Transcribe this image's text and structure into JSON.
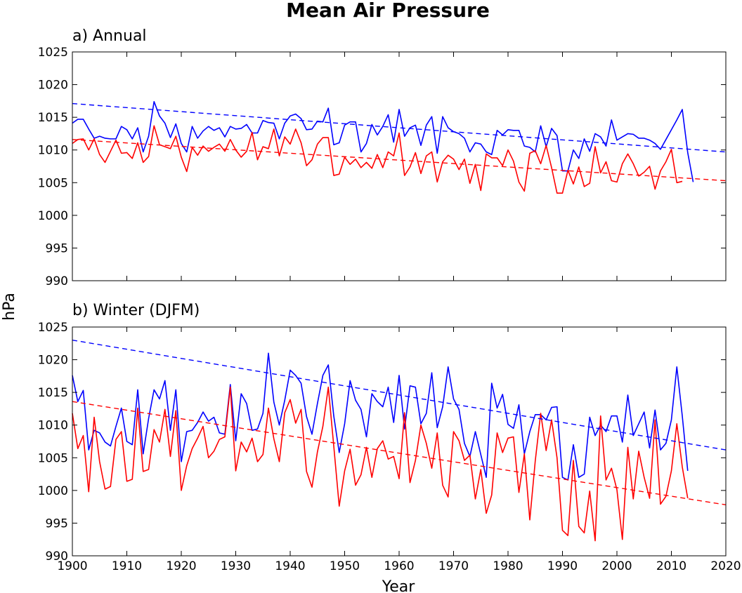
{
  "title": "Mean Air Pressure",
  "shared_ylabel": "hPa",
  "colors": {
    "line_a": "#0000ff",
    "line_b": "#ff0000"
  },
  "chart_data": [
    {
      "type": "line",
      "title": "a) Annual",
      "xlabel": "",
      "ylabel": "hPa",
      "xlim": [
        1900,
        2020
      ],
      "ylim": [
        990,
        1025
      ],
      "yticks": [
        990,
        995,
        1000,
        1005,
        1010,
        1015,
        1020,
        1025
      ],
      "grid": false,
      "series": [
        {
          "color": "#0000ff",
          "x_start": 1900,
          "values": [
            1014.1,
            1014.7,
            1014.7,
            1013.2,
            1011.8,
            1012.1,
            1011.8,
            1011.7,
            1011.7,
            1013.6,
            1013.1,
            1011.7,
            1013.4,
            1009.7,
            1012.1,
            1017.4,
            1015.2,
            1014.1,
            1011.9,
            1014.0,
            1011.0,
            1009.7,
            1013.6,
            1011.8,
            1012.9,
            1013.6,
            1013.0,
            1013.4,
            1012.0,
            1013.6,
            1013.2,
            1013.3,
            1013.9,
            1012.6,
            1012.6,
            1014.5,
            1014.2,
            1014.1,
            1011.7,
            1014.1,
            1015.2,
            1015.5,
            1014.8,
            1013.1,
            1013.2,
            1014.4,
            1014.3,
            1016.4,
            1010.8,
            1011.1,
            1013.8,
            1014.3,
            1014.3,
            1009.7,
            1011.0,
            1013.9,
            1012.3,
            1013.6,
            1015.4,
            1011.2,
            1016.2,
            1012.1,
            1013.4,
            1013.8,
            1010.7,
            1013.8,
            1015.1,
            1009.5,
            1015.1,
            1013.4,
            1012.8,
            1012.5,
            1011.8,
            1009.7,
            1011.1,
            1010.9,
            1009.7,
            1009.3,
            1013.0,
            1012.3,
            1013.1,
            1013.0,
            1013.0,
            1010.6,
            1010.4,
            1009.7,
            1013.7,
            1010.5,
            1013.3,
            1012.2,
            1006.8,
            1006.8,
            1010.0,
            1008.7,
            1011.7,
            1009.8,
            1012.5,
            1012.0,
            1010.6,
            1014.6,
            1011.5,
            1012.0,
            1012.5,
            1012.4,
            1011.8,
            1011.8,
            1011.5,
            1011.0,
            1010.1,
            1011.6,
            1013.1,
            1014.6,
            1016.2,
            1009.6,
            1005.1
          ]
        },
        {
          "color": "#ff0000",
          "x_start": 1900,
          "values": [
            1011.0,
            1011.6,
            1011.7,
            1010.0,
            1011.7,
            1009.3,
            1008.1,
            1009.8,
            1011.5,
            1009.5,
            1009.6,
            1008.7,
            1011.1,
            1008.1,
            1009.0,
            1013.7,
            1010.8,
            1010.5,
            1010.2,
            1012.1,
            1008.9,
            1006.7,
            1010.4,
            1009.2,
            1010.6,
            1009.8,
            1010.4,
            1010.9,
            1009.8,
            1011.6,
            1010.0,
            1008.9,
            1009.8,
            1012.7,
            1008.5,
            1010.5,
            1010.2,
            1013.2,
            1009.1,
            1012.0,
            1010.9,
            1013.2,
            1011.1,
            1007.6,
            1008.5,
            1010.9,
            1011.9,
            1011.9,
            1006.1,
            1006.3,
            1008.9,
            1007.8,
            1008.6,
            1007.3,
            1008.1,
            1007.2,
            1009.3,
            1007.3,
            1009.7,
            1009.1,
            1012.6,
            1006.1,
            1007.4,
            1009.6,
            1006.4,
            1009.1,
            1009.7,
            1005.1,
            1008.2,
            1009.2,
            1008.6,
            1007.0,
            1008.6,
            1004.9,
            1007.8,
            1003.8,
            1009.4,
            1008.8,
            1008.8,
            1007.6,
            1010.0,
            1008.3,
            1005.1,
            1003.7,
            1009.5,
            1009.9,
            1007.9,
            1010.7,
            1007.3,
            1003.4,
            1003.4,
            1006.9,
            1004.8,
            1007.4,
            1004.4,
            1004.9,
            1010.5,
            1006.5,
            1008.2,
            1005.3,
            1005.1,
            1007.9,
            1009.4,
            1007.9,
            1006.0,
            1006.6,
            1007.5,
            1004.0,
            1006.8,
            1008.2,
            1010.1,
            1005.0,
            1005.2
          ]
        }
      ],
      "trends": [
        {
          "color": "#0000ff",
          "x": [
            1900,
            2020
          ],
          "y": [
            1017.1,
            1009.7
          ]
        },
        {
          "color": "#ff0000",
          "x": [
            1900,
            2020
          ],
          "y": [
            1011.6,
            1005.3
          ]
        }
      ]
    },
    {
      "type": "line",
      "title": "b) Winter (DJFM)",
      "xlabel": "Year",
      "ylabel": "hPa",
      "xlim": [
        1900,
        2020
      ],
      "ylim": [
        990,
        1025
      ],
      "xticks": [
        1900,
        1910,
        1920,
        1930,
        1940,
        1950,
        1960,
        1970,
        1980,
        1990,
        2000,
        2010,
        2020
      ],
      "yticks": [
        990,
        995,
        1000,
        1005,
        1010,
        1015,
        1020,
        1025
      ],
      "grid": false,
      "series": [
        {
          "color": "#0000ff",
          "x_start": 1900,
          "values": [
            1017.6,
            1013.6,
            1015.3,
            1006.2,
            1009.2,
            1008.8,
            1007.4,
            1006.8,
            1009.8,
            1012.6,
            1007.5,
            1007.0,
            1015.4,
            1005.6,
            1011.0,
            1015.4,
            1014.0,
            1016.8,
            1009.2,
            1015.4,
            1004.4,
            1009.0,
            1009.2,
            1010.4,
            1012.0,
            1010.6,
            1011.2,
            1008.8,
            1008.6,
            1016.2,
            1007.6,
            1014.8,
            1013.3,
            1009.2,
            1009.4,
            1011.8,
            1021.0,
            1013.5,
            1010.0,
            1013.8,
            1018.4,
            1017.6,
            1016.4,
            1011.3,
            1008.6,
            1013.3,
            1017.6,
            1019.2,
            1011.4,
            1005.8,
            1010.2,
            1016.8,
            1013.8,
            1012.4,
            1008.2,
            1014.8,
            1013.6,
            1012.8,
            1015.8,
            1010.4,
            1017.6,
            1009.4,
            1016.0,
            1015.8,
            1010.2,
            1011.8,
            1018.0,
            1009.6,
            1012.8,
            1018.9,
            1014.0,
            1012.4,
            1007.2,
            1005.2,
            1009.0,
            1005.5,
            1002.0,
            1016.4,
            1012.6,
            1014.7,
            1010.1,
            1009.5,
            1013.1,
            1005.6,
            1009.0,
            1011.6,
            1011.6,
            1010.8,
            1012.7,
            1012.8,
            1002.0,
            1001.6,
            1007.0,
            1002.0,
            1002.5,
            1011.2,
            1008.4,
            1010.0,
            1009.0,
            1011.4,
            1011.4,
            1007.4,
            1014.6,
            1008.4,
            1010.2,
            1012.0,
            1006.5,
            1012.3,
            1006.2,
            1007.2,
            1010.8,
            1018.9,
            1011.4,
            1003.0
          ]
        },
        {
          "color": "#ff0000",
          "x_start": 1900,
          "values": [
            1011.8,
            1006.4,
            1008.4,
            999.8,
            1011.2,
            1004.4,
            1000.2,
            1000.6,
            1007.8,
            1009.0,
            1001.4,
            1001.7,
            1012.6,
            1002.9,
            1003.2,
            1009.3,
            1007.4,
            1012.4,
            1005.2,
            1012.2,
            1000.0,
            1003.8,
            1006.4,
            1008.0,
            1009.8,
            1005.0,
            1006.0,
            1007.8,
            1008.2,
            1015.8,
            1003.0,
            1007.4,
            1005.9,
            1008.0,
            1004.4,
            1005.5,
            1012.6,
            1007.9,
            1004.4,
            1011.9,
            1013.9,
            1010.3,
            1012.4,
            1002.9,
            1000.5,
            1005.9,
            1009.8,
            1015.8,
            1006.8,
            997.6,
            1003.0,
            1006.3,
            1000.8,
            1002.4,
            1006.6,
            1002.0,
            1006.4,
            1007.6,
            1004.8,
            1005.2,
            1001.8,
            1011.9,
            1001.2,
            1004.6,
            1010.0,
            1007.2,
            1003.4,
            1008.8,
            1000.8,
            999.0,
            1009.0,
            1007.6,
            1004.6,
            1005.4,
            998.7,
            1003.2,
            996.5,
            999.3,
            1008.8,
            1005.8,
            1008.0,
            1008.2,
            999.7,
            1005.6,
            995.5,
            1004.5,
            1011.8,
            1006.1,
            1010.8,
            1005.0,
            993.9,
            993.1,
            1004.6,
            994.5,
            993.5,
            999.9,
            992.3,
            1011.4,
            1001.6,
            1003.4,
            1000.1,
            992.5,
            1006.6,
            998.7,
            1006.0,
            1002.0,
            998.8,
            1010.8,
            997.9,
            999.1,
            1003.0,
            1010.2,
            1003.6,
            998.8
          ]
        }
      ],
      "trends": [
        {
          "color": "#0000ff",
          "x": [
            1900,
            2020
          ],
          "y": [
            1023.0,
            1006.2
          ]
        },
        {
          "color": "#ff0000",
          "x": [
            1900,
            2020
          ],
          "y": [
            1013.6,
            997.8
          ]
        }
      ]
    }
  ]
}
